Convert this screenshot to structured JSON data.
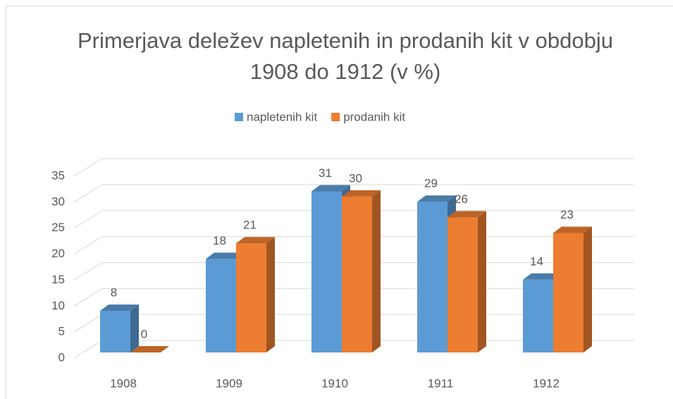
{
  "chart_data": {
    "type": "bar3d",
    "title": "Primerjava deležev napletenih in prodanih kit v obdobju 1908 do 1912 (v %)",
    "categories": [
      "1908",
      "1909",
      "1910",
      "1911",
      "1912"
    ],
    "series": [
      {
        "name": "napletenih kit",
        "color": "#5b9bd5",
        "values": [
          8,
          18,
          31,
          29,
          14
        ]
      },
      {
        "name": "prodanih kit",
        "color": "#ed7d31",
        "values": [
          0,
          21,
          30,
          26,
          23
        ]
      }
    ],
    "ylim": [
      0,
      35
    ],
    "yticks": [
      0,
      5,
      10,
      15,
      20,
      25,
      30,
      35
    ],
    "grid": true,
    "legend": "top"
  }
}
